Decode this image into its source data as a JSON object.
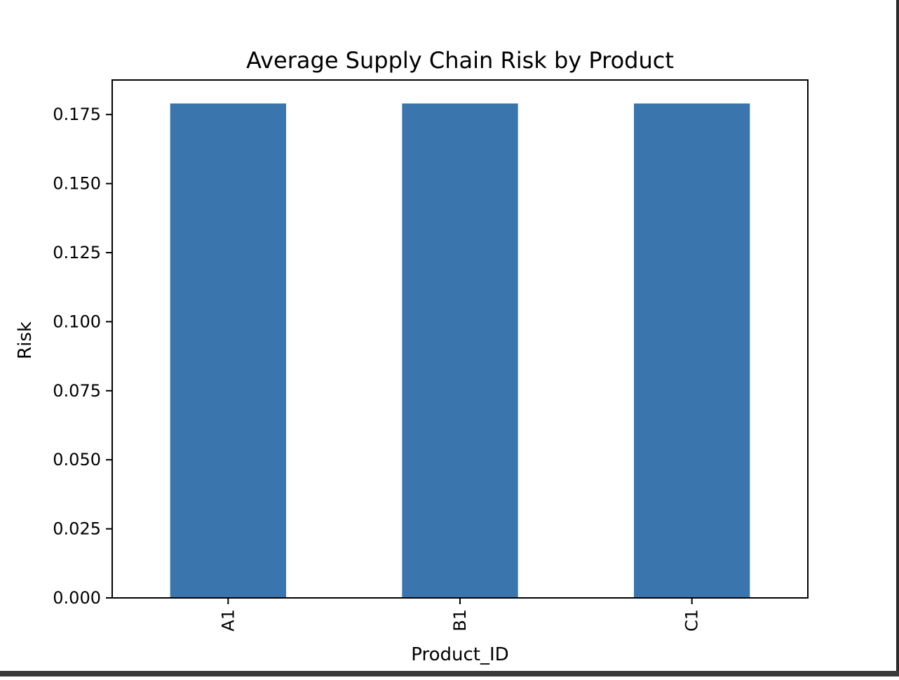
{
  "chart_data": {
    "type": "bar",
    "title": "Average Supply Chain Risk by Product",
    "xlabel": "Product_ID",
    "ylabel": "Risk",
    "categories": [
      "A1",
      "B1",
      "C1"
    ],
    "values": [
      0.179,
      0.179,
      0.179
    ],
    "ylim": [
      0,
      0.1875
    ],
    "yticks": [
      "0.000",
      "0.025",
      "0.050",
      "0.075",
      "0.100",
      "0.125",
      "0.150",
      "0.175"
    ],
    "ytick_values": [
      0,
      0.025,
      0.05,
      0.075,
      0.1,
      0.125,
      0.15,
      0.175
    ],
    "bar_color": "#3a75ae",
    "grid": false,
    "legend": "none"
  }
}
